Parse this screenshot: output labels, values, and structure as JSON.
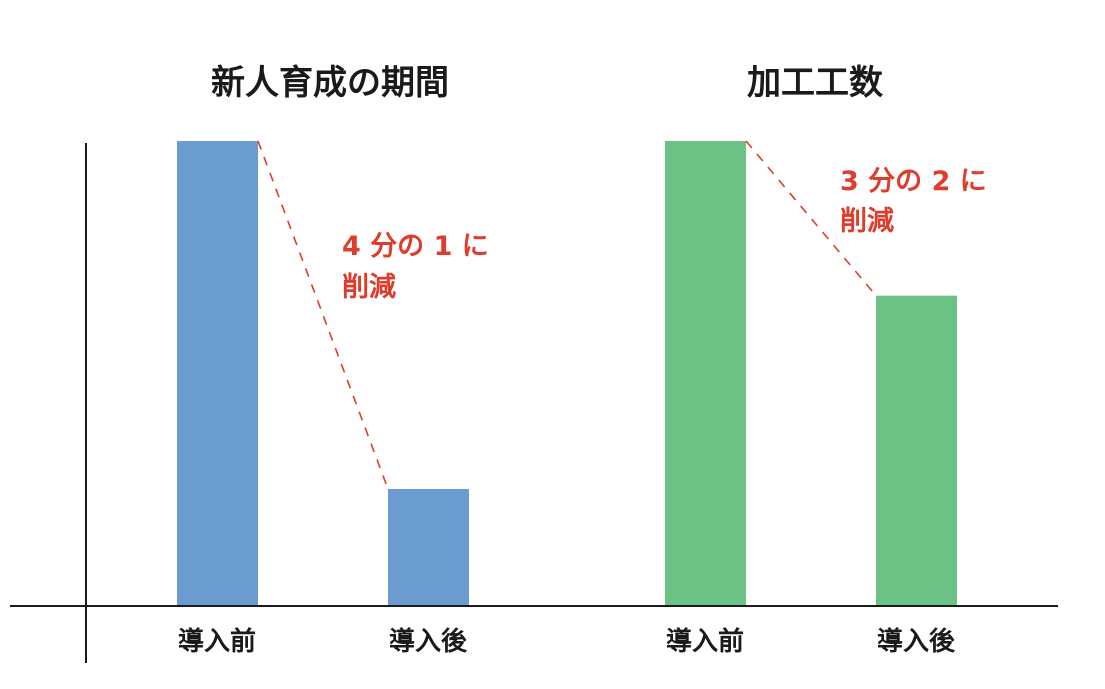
{
  "chart_data": [
    {
      "type": "bar",
      "title": "新人育成の期間",
      "categories": [
        "導入前",
        "導入後"
      ],
      "values": [
        4,
        1
      ],
      "ylim": [
        0,
        4
      ],
      "color": "#6a9bd1",
      "annotation": {
        "lines": [
          "4 分の 1 に",
          "削減"
        ],
        "color": "#e03c2c"
      }
    },
    {
      "type": "bar",
      "title": "加工工数",
      "categories": [
        "導入前",
        "導入後"
      ],
      "values": [
        3,
        2
      ],
      "ylim": [
        0,
        3
      ],
      "color": "#6cc184",
      "annotation": {
        "lines": [
          "3 分の 2 に",
          "削減"
        ],
        "color": "#e03c2c"
      }
    }
  ],
  "axis_color": "#1a1a1a"
}
